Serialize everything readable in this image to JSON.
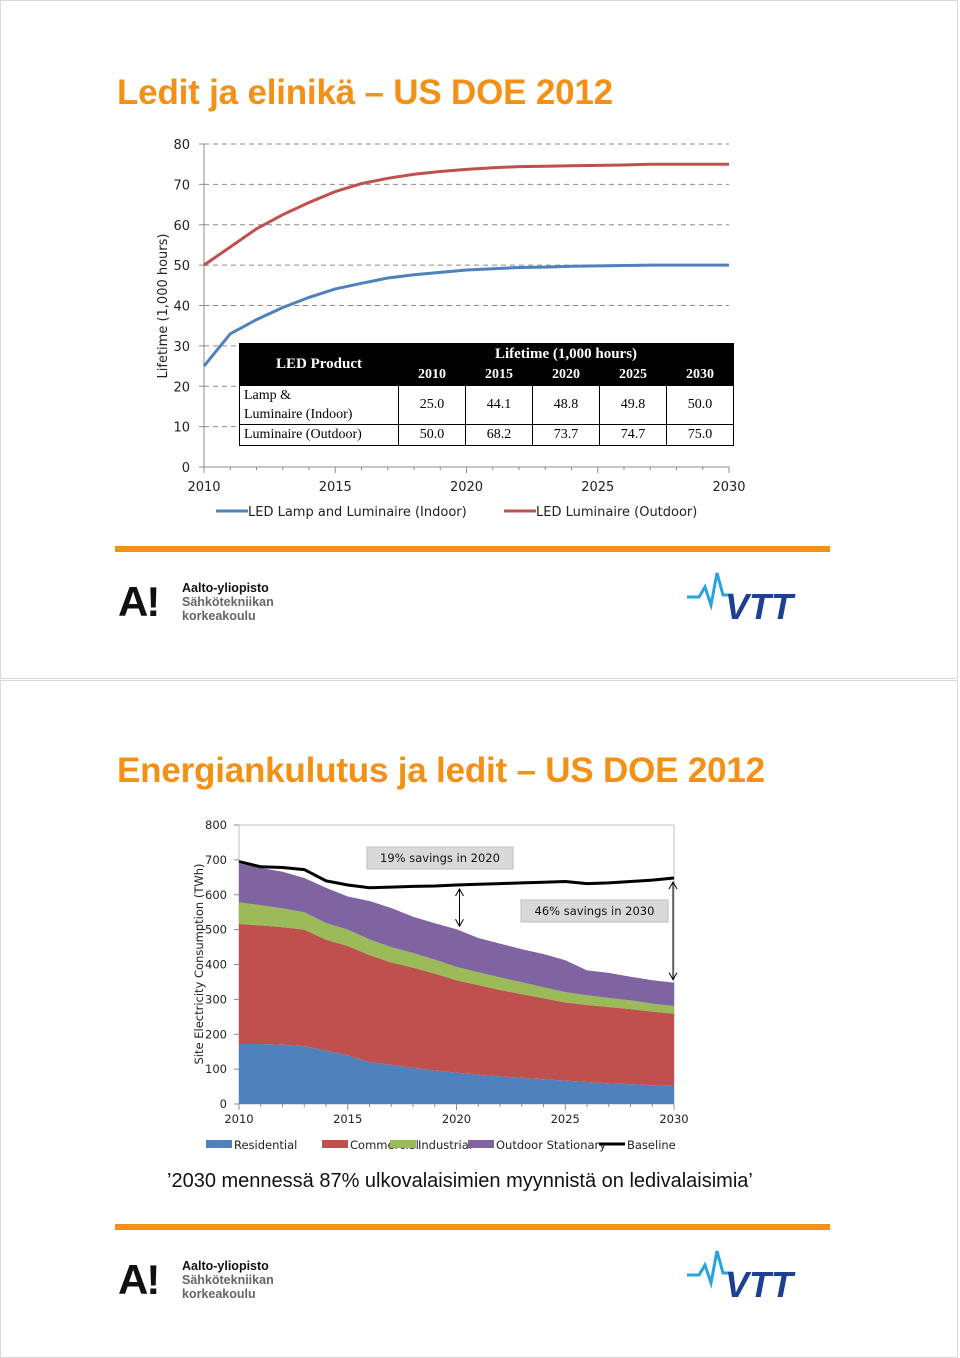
{
  "slide1": {
    "title": "Ledit ja elinikä – US DOE 2012",
    "chart_data": {
      "type": "line",
      "title": "",
      "xlabel": "",
      "ylabel": "Lifetime (1,000 hours)",
      "ylim": [
        0,
        80
      ],
      "yticks": [
        "0",
        "10",
        "20",
        "30",
        "40",
        "50",
        "60",
        "70",
        "80"
      ],
      "xlim": [
        2010,
        2030
      ],
      "xticks": [
        "2010",
        "2015",
        "2020",
        "2025",
        "2030"
      ],
      "grid": "horizontal dashed",
      "legend_position": "bottom",
      "series": [
        {
          "name": "LED Lamp and Luminaire (Indoor)",
          "color": "#4f81bd",
          "x": [
            2010,
            2011,
            2012,
            2013,
            2014,
            2015,
            2016,
            2017,
            2018,
            2019,
            2020,
            2021,
            2022,
            2023,
            2024,
            2025,
            2026,
            2027,
            2028,
            2029,
            2030
          ],
          "values": [
            25.0,
            33.0,
            36.5,
            39.5,
            42.0,
            44.1,
            45.5,
            46.8,
            47.6,
            48.2,
            48.8,
            49.1,
            49.4,
            49.5,
            49.7,
            49.8,
            49.9,
            50.0,
            50.0,
            50.0,
            50.0
          ]
        },
        {
          "name": "LED Luminaire (Outdoor)",
          "color": "#c0504d",
          "x": [
            2010,
            2011,
            2012,
            2013,
            2014,
            2015,
            2016,
            2017,
            2018,
            2019,
            2020,
            2021,
            2022,
            2023,
            2024,
            2025,
            2026,
            2027,
            2028,
            2029,
            2030
          ],
          "values": [
            50.0,
            54.5,
            59.0,
            62.5,
            65.5,
            68.2,
            70.2,
            71.5,
            72.5,
            73.2,
            73.7,
            74.1,
            74.4,
            74.5,
            74.6,
            74.7,
            74.8,
            75.0,
            75.0,
            75.0,
            75.0
          ]
        }
      ]
    },
    "table": {
      "product_header": "LED Product",
      "lifetime_header": "Lifetime (1,000 hours)",
      "years": [
        "2010",
        "2015",
        "2020",
        "2025",
        "2030"
      ],
      "rows": [
        {
          "label_line1": "Lamp &",
          "label_line2": "Luminaire (Indoor)",
          "values": [
            "25.0",
            "44.1",
            "48.8",
            "49.8",
            "50.0"
          ]
        },
        {
          "label_line1": "Luminaire (Outdoor)",
          "label_line2": "",
          "values": [
            "50.0",
            "68.2",
            "73.7",
            "74.7",
            "75.0"
          ]
        }
      ]
    }
  },
  "slide2": {
    "title": "Energiankulutus ja ledit – US DOE 2012",
    "chart_data": {
      "type": "area",
      "title": "",
      "xlabel": "",
      "ylabel": "Site Electricity Consumption (TWh)",
      "ylim": [
        0,
        800
      ],
      "yticks": [
        "0",
        "100",
        "200",
        "300",
        "400",
        "500",
        "600",
        "700",
        "800"
      ],
      "xlim": [
        2010,
        2030
      ],
      "xticks": [
        "2010",
        "2015",
        "2020",
        "2025",
        "2030"
      ],
      "stacked": true,
      "legend_position": "bottom",
      "x": [
        2010,
        2011,
        2012,
        2013,
        2014,
        2015,
        2016,
        2017,
        2018,
        2019,
        2020,
        2021,
        2022,
        2023,
        2024,
        2025,
        2026,
        2027,
        2028,
        2029,
        2030
      ],
      "series": [
        {
          "name": "Residential",
          "color": "#4f81bd",
          "values": [
            172,
            172,
            170,
            166,
            153,
            140,
            120,
            112,
            104,
            96,
            90,
            84,
            79,
            75,
            71,
            67,
            63,
            59,
            57,
            54,
            52
          ]
        },
        {
          "name": "Commercial",
          "color": "#c0504d",
          "values": [
            344,
            340,
            337,
            334,
            318,
            313,
            307,
            294,
            287,
            278,
            265,
            257,
            248,
            240,
            232,
            224,
            221,
            219,
            215,
            211,
            207
          ]
        },
        {
          "name": "Industrial",
          "color": "#9bbb59",
          "values": [
            62,
            58,
            54,
            50,
            48,
            47,
            45,
            44,
            42,
            40,
            38,
            37,
            36,
            34,
            32,
            30,
            28,
            26,
            25,
            23,
            22
          ]
        },
        {
          "name": "Outdoor Stationary",
          "color": "#8064a2",
          "values": [
            112,
            107,
            105,
            98,
            101,
            95,
            110,
            112,
            104,
            104,
            108,
            98,
            97,
            95,
            95,
            91,
            71,
            72,
            68,
            67,
            67
          ]
        }
      ],
      "baseline": {
        "name": "Baseline",
        "color": "#000000",
        "values": [
          695,
          680,
          678,
          672,
          640,
          628,
          620,
          622,
          624,
          625,
          628,
          630,
          632,
          634,
          636,
          638,
          632,
          634,
          638,
          642,
          648
        ]
      },
      "annotations": [
        {
          "text": "19% savings in 2020",
          "x": 2020
        },
        {
          "text": "46% savings in 2030",
          "x": 2030
        }
      ]
    },
    "quote": "’2030 mennessä 87% ulkovalaisimien myynnistä on ledivalaisimia’"
  },
  "branding": {
    "aalto_mark": "A!",
    "aalto_line1": "Aalto-yliopisto",
    "aalto_line2": "Sähkötekniikan",
    "aalto_line3": "korkeakoulu",
    "vtt": "VTT",
    "accent_color": "#f39016",
    "vtt_color": "#1d3f94",
    "vtt_wave_color": "#29a3dc"
  }
}
